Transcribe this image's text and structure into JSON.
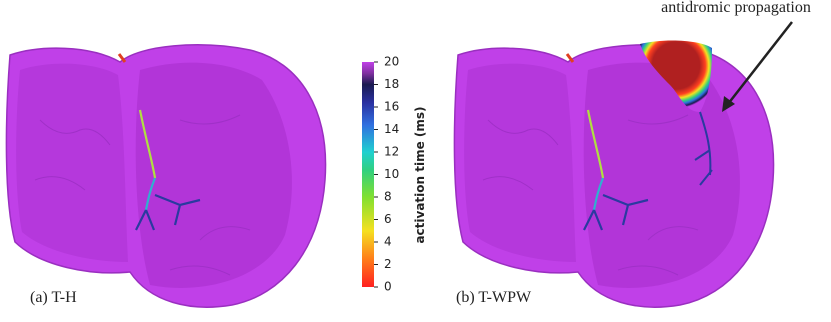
{
  "annotation": "antidromic propagation",
  "colorbar": {
    "label": "activation time (ms)",
    "lim": [
      0,
      20
    ],
    "ticks": [
      0,
      2,
      4,
      6,
      8,
      10,
      12,
      14,
      16,
      18,
      20
    ]
  },
  "panels": [
    {
      "caption": "(a) T-H"
    },
    {
      "caption": "(b) T-WPW"
    }
  ]
}
